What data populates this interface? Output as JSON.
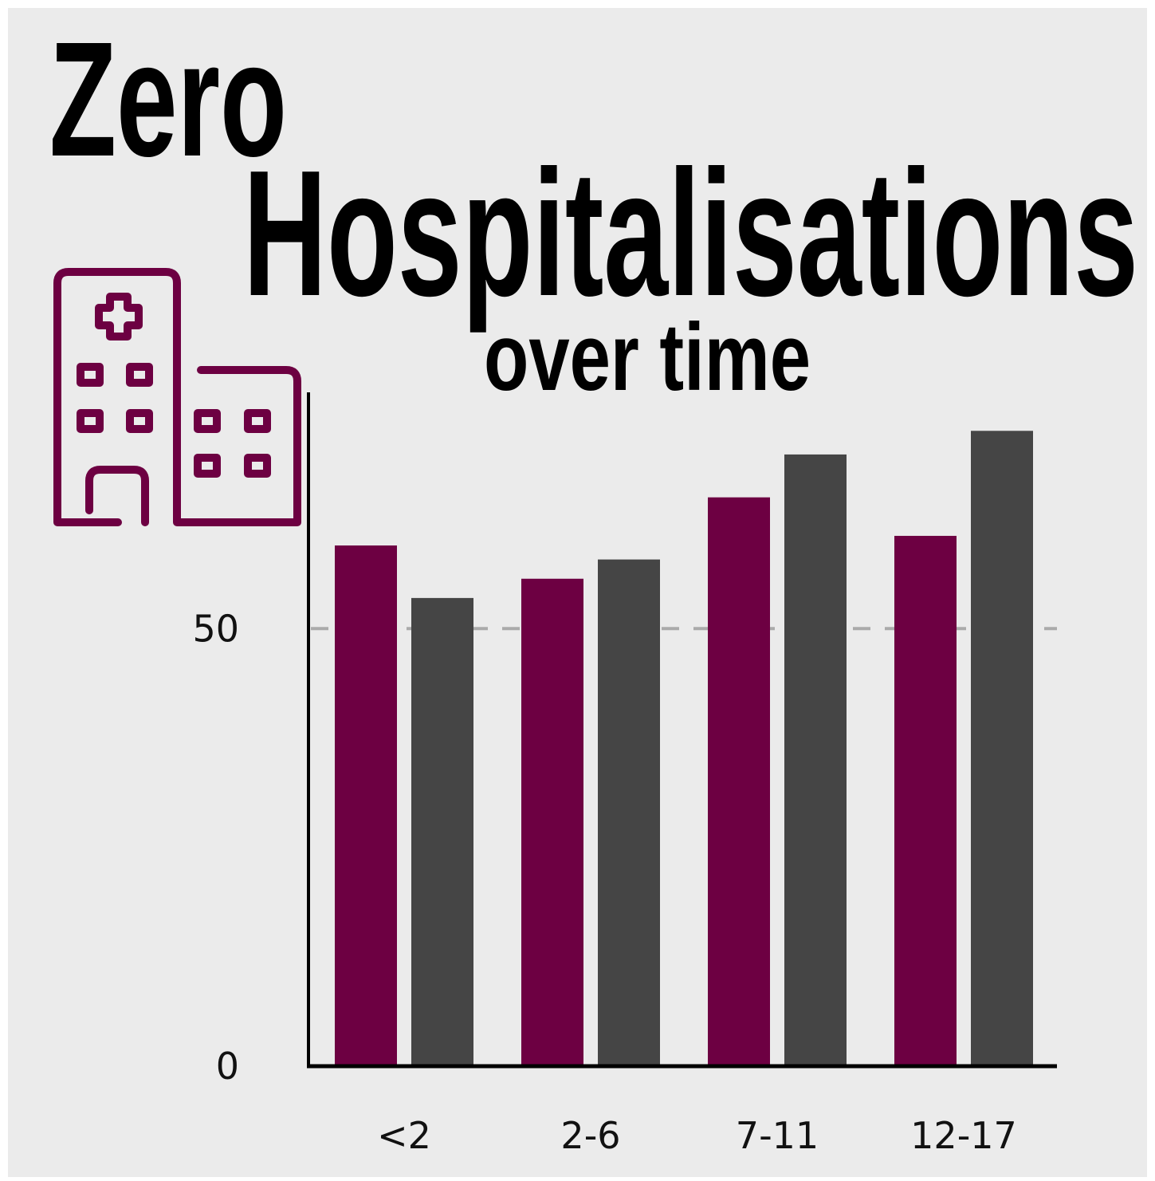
{
  "chart_data": {
    "type": "bar",
    "title": [
      "Zero",
      "Hospitalisations"
    ],
    "subtitle": "over time",
    "categories": [
      "<2",
      "2-6",
      "7-11",
      "12-17"
    ],
    "series": [
      {
        "color": "#6d0042",
        "values": [
          59.5,
          55.7,
          65,
          60.6
        ]
      },
      {
        "color": "#454545",
        "values": [
          53.5,
          57.9,
          69.9,
          72.6
        ]
      }
    ],
    "ylim": [
      0,
      77
    ],
    "yticks": [
      0,
      50
    ],
    "grid": true
  }
}
